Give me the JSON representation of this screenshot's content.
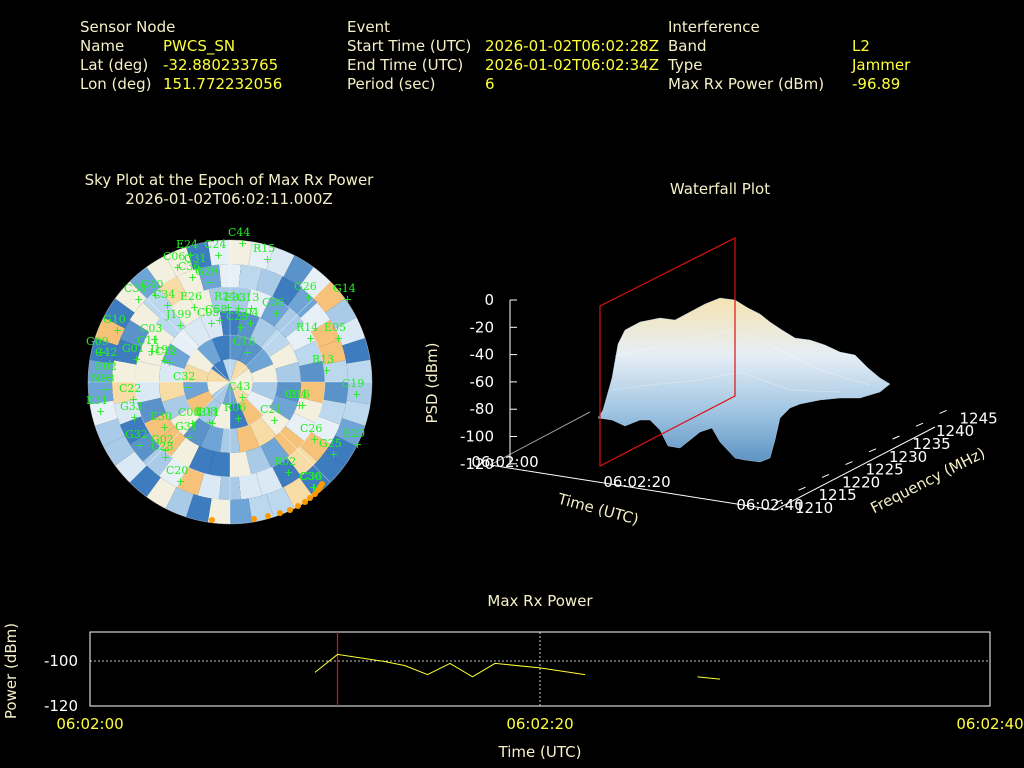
{
  "header": {
    "sensor": {
      "heading": "Sensor Node",
      "name_label": "Name",
      "name": "PWCS_SN",
      "lat_label": "Lat (deg)",
      "lat": "-32.880233765",
      "lon_label": "Lon (deg)",
      "lon": "151.772232056"
    },
    "event": {
      "heading": "Event",
      "start_label": "Start Time (UTC)",
      "start": "2026-01-02T06:02:28Z",
      "end_label": "End Time (UTC)",
      "end": "2026-01-02T06:02:34Z",
      "period_label": "Period (sec)",
      "period": "6"
    },
    "interference": {
      "heading": "Interference",
      "band_label": "Band",
      "band": "L2",
      "type_label": "Type",
      "type": "Jammer",
      "power_label": "Max Rx Power (dBm)",
      "power": "-96.89"
    }
  },
  "colors": {
    "background": "#000000",
    "label_text": "#f5f0c8",
    "value_text": "#ffff3a",
    "satellite": "#22ee22",
    "marker": "#ff9900",
    "epoch_line": "#dd1111",
    "power_line": "#ffff33"
  },
  "chart_data": [
    {
      "type": "polar-heatmap",
      "title": "Sky Plot at the Epoch of Max Rx Power",
      "subtitle": "2026-01-02T06:02:11.000Z",
      "satellites": [
        "C44",
        "E24",
        "C24",
        "R15",
        "C06",
        "C31",
        "G29",
        "C36",
        "C40",
        "G26",
        "G14",
        "C34",
        "E26",
        "R24",
        "C13",
        "G36",
        "C38",
        "G10",
        "C03",
        "J199",
        "C05",
        "G04",
        "C23",
        "R14",
        "E05",
        "E33",
        "C11",
        "C12",
        "C58",
        "G09",
        "C16",
        "R13",
        "G01",
        "C42",
        "E02",
        "C32",
        "J196",
        "C19",
        "C22",
        "C43",
        "N93",
        "C04",
        "E31",
        "G33",
        "E08",
        "R06",
        "C21",
        "E16",
        "E30",
        "C08",
        "E11",
        "C26",
        "G32",
        "G02",
        "C20",
        "E20",
        "G25",
        "C28",
        "G31",
        "R02",
        "C30",
        "C36"
      ]
    },
    {
      "type": "surface3d",
      "title": "Waterfall Plot",
      "xlabel": "Time (UTC)",
      "ylabel": "Frequency (MHz)",
      "zlabel": "PSD (dBm)",
      "x_ticks": [
        "06:02:00",
        "06:02:20",
        "06:02:40"
      ],
      "y_ticks": [
        "1210",
        "1215",
        "1220",
        "1225",
        "1230",
        "1235",
        "1240",
        "1245"
      ],
      "z_ticks": [
        "0",
        "-20",
        "-40",
        "-60",
        "-80",
        "-100",
        "-120"
      ],
      "zlim": [
        -120,
        0
      ],
      "marker_time": "06:02:11"
    },
    {
      "type": "line",
      "title": "Max Rx Power",
      "xlabel": "Time (UTC)",
      "ylabel": "Power (dBm)",
      "x_ticks": [
        "06:02:00",
        "06:02:20",
        "06:02:40"
      ],
      "y_ticks": [
        "-100",
        "-120"
      ],
      "xlim": [
        0,
        40
      ],
      "ylim": [
        -120,
        -87
      ],
      "marker_time": 11,
      "series": [
        {
          "x": [
            10,
            11,
            13,
            14,
            15,
            16,
            17,
            18,
            20,
            22
          ],
          "y": [
            -105,
            -97,
            -100,
            -102,
            -106,
            -101,
            -107,
            -101,
            -103,
            -106
          ]
        },
        {
          "x": [
            27,
            28
          ],
          "y": [
            -107,
            -108
          ]
        }
      ]
    }
  ]
}
